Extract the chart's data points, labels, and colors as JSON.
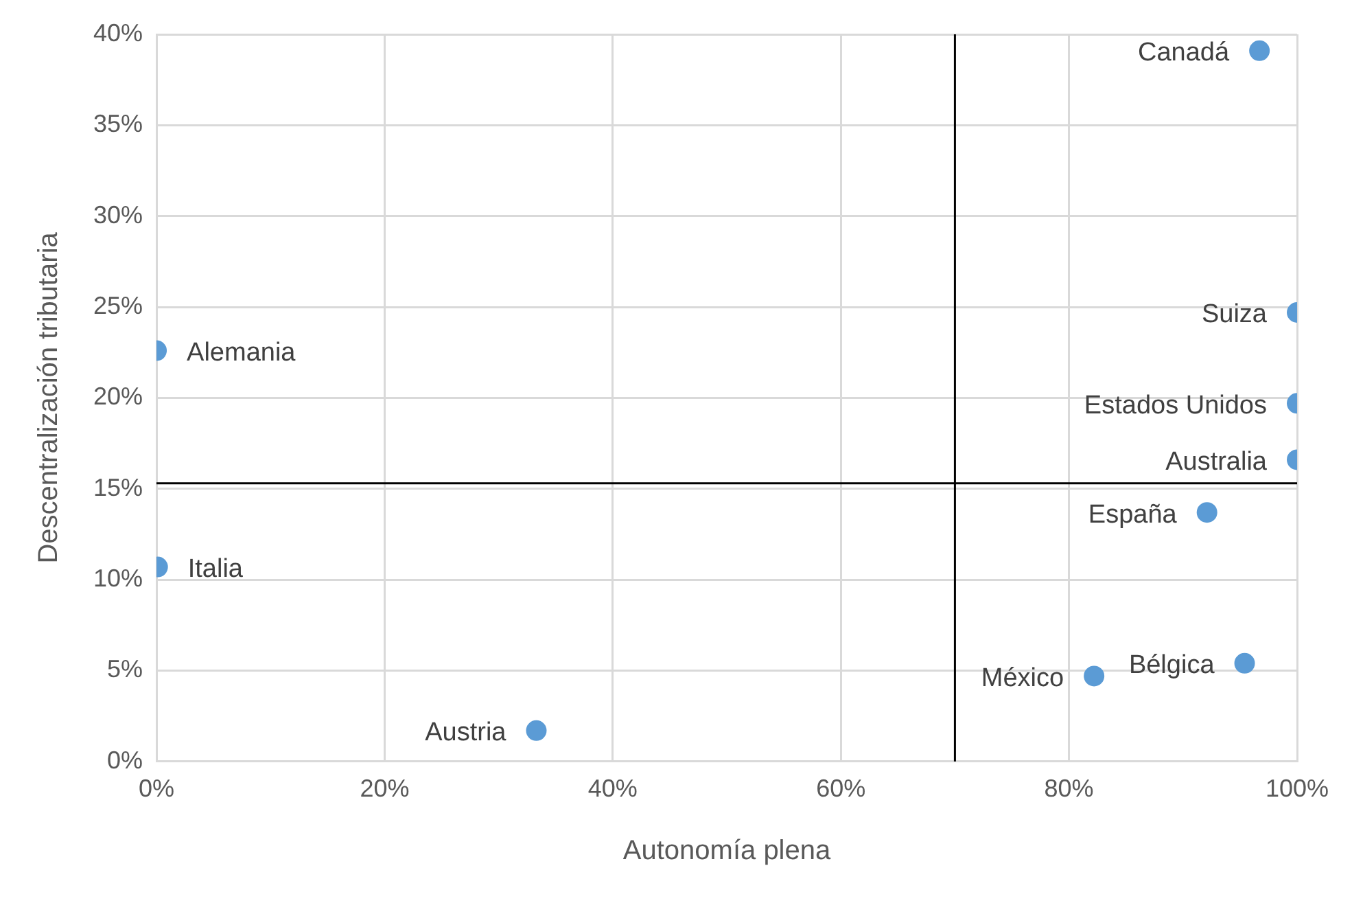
{
  "chart_data": {
    "type": "scatter",
    "xlabel": "Autonomía plena",
    "ylabel": "Descentralización tributaria",
    "x": [
      96.7,
      100,
      100,
      100,
      92.1,
      95.4,
      82.2,
      33.3,
      0,
      0.1
    ],
    "series": [
      {
        "color": "#5b9bd5",
        "values": [
          39.1,
          24.7,
          19.7,
          16.6,
          13.7,
          5.4,
          4.7,
          1.7,
          22.6,
          10.7
        ]
      }
    ],
    "xlim": [
      0,
      100
    ],
    "xticks": [
      {
        "value": 0,
        "label": "0%"
      },
      {
        "value": 20,
        "label": "20%"
      },
      {
        "value": 40,
        "label": "40%"
      },
      {
        "value": 60,
        "label": "60%"
      },
      {
        "value": 80,
        "label": "80%"
      },
      {
        "value": 100,
        "label": "100%"
      }
    ],
    "ylim": [
      0,
      40
    ],
    "yticks": [
      {
        "value": 0,
        "label": "0%"
      },
      {
        "value": 5,
        "label": "5%"
      },
      {
        "value": 10,
        "label": "10%"
      },
      {
        "value": 15,
        "label": "15%"
      },
      {
        "value": 20,
        "label": "20%"
      },
      {
        "value": 25,
        "label": "25%"
      },
      {
        "value": 30,
        "label": "30%"
      },
      {
        "value": 35,
        "label": "35%"
      },
      {
        "value": 40,
        "label": "40%"
      }
    ],
    "grid": true,
    "legend": false,
    "marker": "circle",
    "ref_lines": [
      {
        "axis": "x",
        "value": 70,
        "color": "#000000"
      },
      {
        "axis": "y",
        "value": 15.3,
        "color": "#000000"
      }
    ],
    "annotations": [
      {
        "text": "Canadá",
        "x": 96.7,
        "y": 39.1
      },
      {
        "text": "Suiza",
        "x": 100,
        "y": 24.7
      },
      {
        "text": "Estados Unidos",
        "x": 100,
        "y": 19.7
      },
      {
        "text": "Australia",
        "x": 100,
        "y": 16.6
      },
      {
        "text": "España",
        "x": 92.1,
        "y": 13.7
      },
      {
        "text": "Bélgica",
        "x": 95.4,
        "y": 5.4
      },
      {
        "text": "México",
        "x": 82.2,
        "y": 4.7
      },
      {
        "text": "Austria",
        "x": 33.3,
        "y": 1.7
      },
      {
        "text": "Alemania",
        "x": 0,
        "y": 22.6
      },
      {
        "text": "Italia",
        "x": 0.1,
        "y": 10.7
      }
    ]
  }
}
